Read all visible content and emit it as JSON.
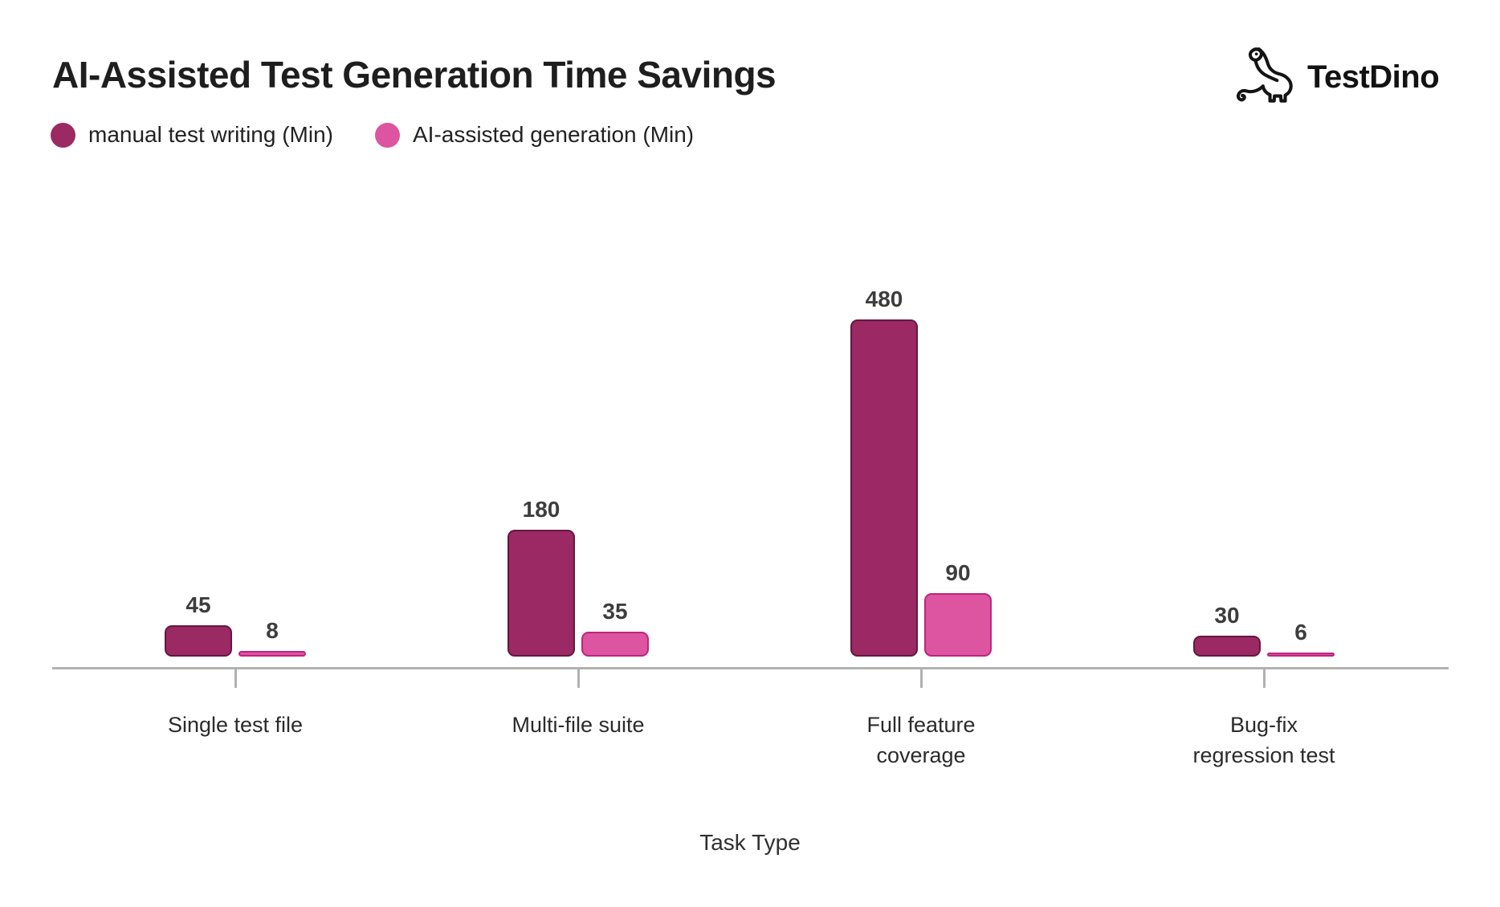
{
  "header": {
    "title": "AI-Assisted Test Generation Time Savings",
    "logo_text": "TestDino"
  },
  "legend": {
    "items": [
      {
        "label": "manual test writing (Min)",
        "color": "#9B2963"
      },
      {
        "label": "AI-assisted generation (Min)",
        "color": "#DD54A0"
      }
    ]
  },
  "chart_data": {
    "type": "bar",
    "title": "AI-Assisted Test Generation Time Savings",
    "xlabel": "Task Type",
    "ylabel": "",
    "ylim": [
      0,
      480
    ],
    "grid": false,
    "legend_position": "top-left",
    "value_labels": true,
    "categories": [
      "Single test file",
      "Multi-file suite",
      "Full feature coverage",
      "Bug-fix regression test"
    ],
    "category_label_lines": [
      [
        "Single test file"
      ],
      [
        "Multi-file suite"
      ],
      [
        "Full feature",
        "coverage"
      ],
      [
        "Bug-fix",
        "regression test"
      ]
    ],
    "series": [
      {
        "name": "manual test writing (Min)",
        "values": [
          45,
          180,
          480,
          30
        ],
        "fill": "#9B2963",
        "stroke": "#64173F"
      },
      {
        "name": "AI-assisted generation (Min)",
        "values": [
          8,
          35,
          90,
          6
        ],
        "fill": "#DD54A0",
        "stroke": "#BE2480"
      }
    ]
  },
  "colors": {
    "axis": "#B1B1B1",
    "title_text": "#1E1E1E",
    "value_label_text": "#3D3D3D",
    "category_label_text": "#2B2B2B"
  }
}
